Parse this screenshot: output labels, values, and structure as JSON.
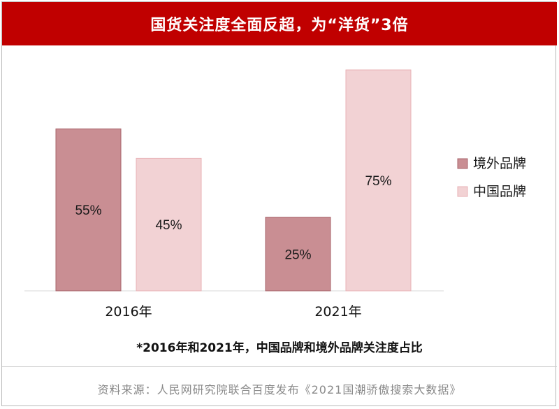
{
  "title": "国货关注度全面反超，为“洋货”3倍",
  "chart_data": {
    "type": "bar",
    "categories": [
      "2016年",
      "2021年"
    ],
    "series": [
      {
        "name": "境外品牌",
        "values": [
          55,
          25
        ],
        "color": "#c98e93"
      },
      {
        "name": "中国品牌",
        "values": [
          45,
          75
        ],
        "color": "#f2d2d4"
      }
    ],
    "data_labels": [
      [
        "55%",
        "25%"
      ],
      [
        "45%",
        "75%"
      ]
    ],
    "ylim": [
      0,
      75
    ],
    "legend_position": "right",
    "grid": false
  },
  "caption": "*2016年和2021年，中国品牌和境外品牌关注度占比",
  "source": "资料来源：人民网研究院联合百度发布《2021国潮骄傲搜索大数据》"
}
